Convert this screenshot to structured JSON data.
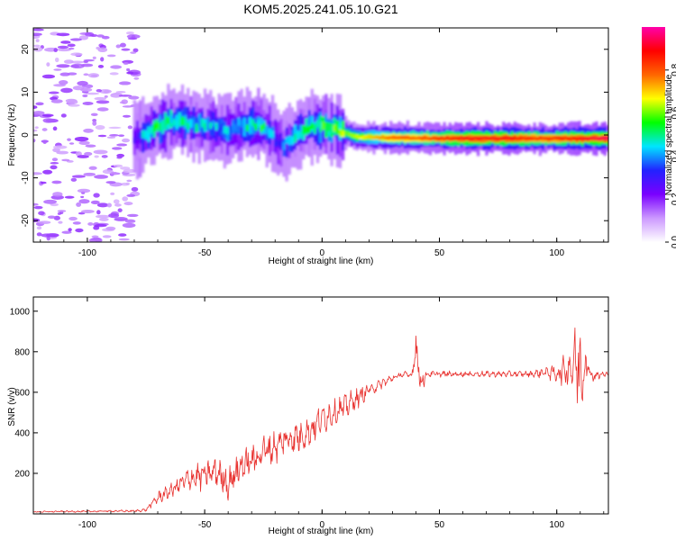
{
  "title": "KOM5.2025.241.05.10.G21",
  "chart_data": [
    {
      "type": "heatmap",
      "xlabel": "Height of straight line (km)",
      "ylabel": "Frequency (Hz)",
      "xlim": [
        -123,
        122
      ],
      "ylim": [
        -25,
        25
      ],
      "xticks": [
        -100,
        -50,
        0,
        50,
        100
      ],
      "yticks": [
        -20,
        -10,
        0,
        10,
        20
      ],
      "colorbar": {
        "label": "Normalized spectral amplitude",
        "range": [
          0.0,
          1.0
        ],
        "ticks": [
          0.0,
          0.2,
          0.4,
          0.6,
          0.8
        ],
        "tick_labels": [
          "0.0",
          "0.2",
          "0.4",
          "0.6",
          "0.8"
        ],
        "colors": [
          "#ffffff",
          "#cc99ff",
          "#7a00ff",
          "#2222ff",
          "#00e5ff",
          "#00ff00",
          "#ffff00",
          "#ff6600",
          "#ff0000",
          "#ff00aa"
        ]
      },
      "ridge": {
        "x": [
          -80,
          -75,
          -70,
          -65,
          -60,
          -55,
          -50,
          -45,
          -40,
          -35,
          -30,
          -25,
          -20,
          -17,
          -14,
          -10,
          -5,
          0,
          5,
          10,
          15,
          20,
          30,
          40,
          50,
          60,
          70,
          80,
          90,
          100,
          110,
          122
        ],
        "y": [
          -1,
          0,
          2,
          3,
          3,
          2.5,
          2,
          1.5,
          1,
          2,
          2.5,
          2,
          -1,
          -2.5,
          -1.5,
          0.5,
          2,
          2,
          1.5,
          0.5,
          -0.5,
          -0.5,
          -0.7,
          -0.7,
          -0.8,
          -0.8,
          -0.8,
          -0.8,
          -0.8,
          -0.8,
          -0.8,
          -0.8
        ],
        "amplitude": [
          0.3,
          0.45,
          0.5,
          0.5,
          0.5,
          0.45,
          0.45,
          0.4,
          0.4,
          0.45,
          0.5,
          0.5,
          0.35,
          0.35,
          0.4,
          0.45,
          0.5,
          0.55,
          0.55,
          0.6,
          0.65,
          0.7,
          0.8,
          0.8,
          0.85,
          0.9,
          0.9,
          0.9,
          0.85,
          0.85,
          0.9,
          0.95
        ]
      }
    },
    {
      "type": "line",
      "xlabel": "Height of straight line (km)",
      "ylabel": "SNR (v/v)",
      "xlim": [
        -123,
        122
      ],
      "ylim": [
        0,
        1070
      ],
      "xticks": [
        -100,
        -50,
        0,
        50,
        100
      ],
      "yticks": [
        200,
        400,
        600,
        800,
        1000
      ],
      "color": "#e8312e",
      "series": [
        {
          "x": [
            -123,
            -110,
            -100,
            -90,
            -80,
            -75,
            -70,
            -65,
            -60,
            -55,
            -50,
            -45,
            -40,
            -35,
            -30,
            -25,
            -20,
            -15,
            -10,
            -5,
            0,
            5,
            10,
            15,
            20,
            25,
            30,
            35,
            38,
            40,
            42,
            45,
            50,
            60,
            70,
            80,
            90,
            95,
            100,
            105,
            108,
            110,
            112,
            115,
            122
          ],
          "y": [
            10,
            12,
            12,
            14,
            14,
            20,
            80,
            110,
            150,
            180,
            190,
            210,
            150,
            230,
            260,
            310,
            330,
            370,
            380,
            410,
            470,
            500,
            530,
            570,
            610,
            640,
            670,
            690,
            680,
            820,
            650,
            690,
            690,
            690,
            690,
            690,
            690,
            700,
            690,
            720,
            750,
            700,
            760,
            680,
            690
          ],
          "spread": [
            4,
            6,
            6,
            6,
            8,
            10,
            40,
            50,
            70,
            90,
            100,
            110,
            110,
            120,
            120,
            110,
            110,
            110,
            110,
            100,
            100,
            90,
            80,
            70,
            50,
            35,
            25,
            20,
            20,
            120,
            90,
            20,
            20,
            20,
            20,
            20,
            20,
            40,
            60,
            130,
            230,
            370,
            200,
            40,
            20
          ]
        }
      ]
    }
  ]
}
